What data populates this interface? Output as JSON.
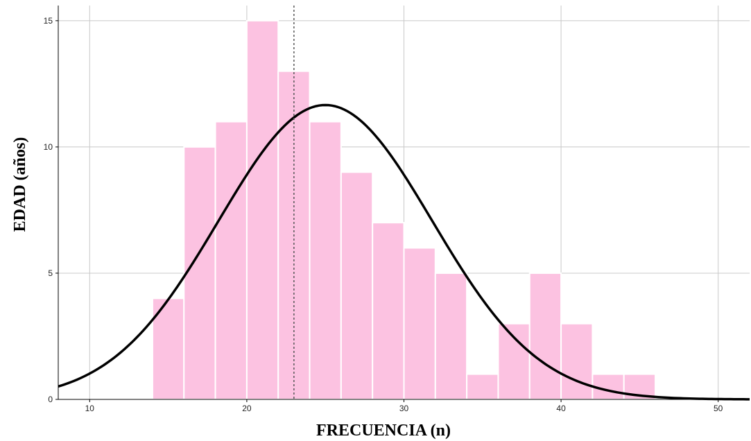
{
  "chart_data": {
    "type": "bar",
    "xlabel": "FRECUENCIA (n)",
    "ylabel": "EDAD (años)",
    "xlim": [
      8,
      52
    ],
    "ylim": [
      0,
      15.6
    ],
    "x_ticks": [
      10,
      20,
      30,
      40,
      50
    ],
    "y_ticks": [
      0,
      5,
      10,
      15
    ],
    "grid": true,
    "bins": [
      {
        "start": 14,
        "end": 16,
        "value": 4
      },
      {
        "start": 16,
        "end": 18,
        "value": 10
      },
      {
        "start": 18,
        "end": 20,
        "value": 11
      },
      {
        "start": 20,
        "end": 22,
        "value": 15
      },
      {
        "start": 22,
        "end": 24,
        "value": 13
      },
      {
        "start": 24,
        "end": 26,
        "value": 11
      },
      {
        "start": 26,
        "end": 28,
        "value": 9
      },
      {
        "start": 28,
        "end": 30,
        "value": 7
      },
      {
        "start": 30,
        "end": 32,
        "value": 6
      },
      {
        "start": 32,
        "end": 34,
        "value": 5
      },
      {
        "start": 34,
        "end": 36,
        "value": 1
      },
      {
        "start": 36,
        "end": 38,
        "value": 3
      },
      {
        "start": 38,
        "end": 40,
        "value": 5
      },
      {
        "start": 40,
        "end": 42,
        "value": 3
      },
      {
        "start": 42,
        "end": 44,
        "value": 1
      },
      {
        "start": 44,
        "end": 46,
        "value": 1
      }
    ],
    "normal_curve": {
      "mean": 25.0,
      "sd": 6.8,
      "peak": 11.66
    },
    "mean_line_x": 23.0,
    "colors": {
      "bar": "#fcc2e1",
      "bar_edge": "#ffffff",
      "curve": "#000000",
      "grid": "#c8c8c8",
      "mean_line": "#555555"
    }
  }
}
